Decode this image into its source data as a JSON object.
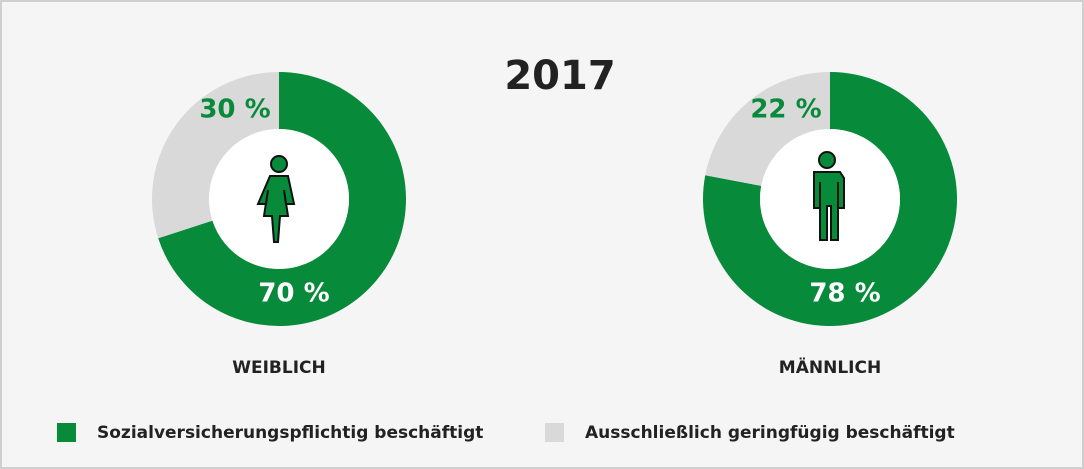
{
  "title": "2017",
  "legend": {
    "categories": [
      "Sozialversicherungspflichtig beschäftigt",
      "Ausschließlich geringfügig beschäftigt"
    ],
    "colors": [
      "#078a3a",
      "#d9d9d9"
    ]
  },
  "chart_data": [
    {
      "type": "pie",
      "label": "WEIBLICH",
      "values": [
        70,
        30
      ],
      "value_labels": [
        "70 %",
        "30 %"
      ]
    },
    {
      "type": "pie",
      "label": "MÄNNLICH",
      "values": [
        78,
        22
      ],
      "value_labels": [
        "78 %",
        "22 %"
      ]
    }
  ]
}
